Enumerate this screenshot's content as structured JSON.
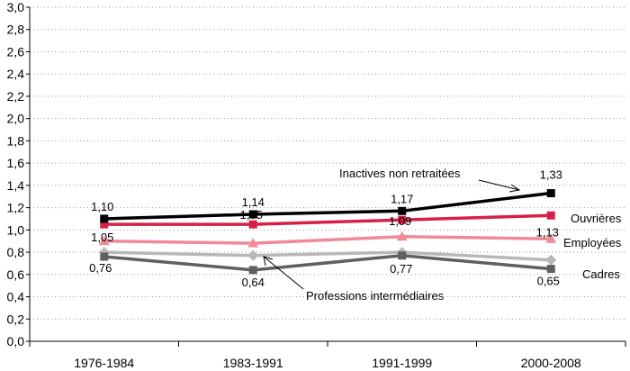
{
  "chart_data": {
    "type": "line",
    "categories": [
      "1976-1984",
      "1983-1991",
      "1991-1999",
      "2000-2008"
    ],
    "ylim": [
      0,
      3.0
    ],
    "yticks": [
      "0,0",
      "0,2",
      "0,4",
      "0,6",
      "0,8",
      "1,0",
      "1,2",
      "1,4",
      "1,6",
      "1,8",
      "2,0",
      "2,2",
      "2,4",
      "2,6",
      "2,8",
      "3,0"
    ],
    "grid": true,
    "series": [
      {
        "name": "Inactives non retraitées",
        "color": "#000000",
        "marker": "square",
        "values": [
          1.1,
          1.14,
          1.17,
          1.33
        ],
        "labels": [
          "1,10",
          "1,14",
          "1,17",
          "1,33"
        ]
      },
      {
        "name": "Ouvrières",
        "color": "#d81f45",
        "marker": "square",
        "values": [
          1.05,
          1.05,
          1.09,
          1.13
        ],
        "labels": [
          "1,05",
          "1,05",
          "1,09",
          "1,13"
        ]
      },
      {
        "name": "Employées",
        "color": "#f08a98",
        "marker": "triangle",
        "values": [
          0.9,
          0.88,
          0.94,
          0.92
        ],
        "labels": [
          "",
          "",
          "",
          ""
        ]
      },
      {
        "name": "Professions intermédiaires",
        "color": "#b8b8b8",
        "marker": "diamond",
        "values": [
          0.8,
          0.77,
          0.8,
          0.73
        ],
        "labels": [
          "",
          "",
          "",
          ""
        ]
      },
      {
        "name": "Cadres",
        "color": "#606060",
        "marker": "square",
        "values": [
          0.76,
          0.64,
          0.77,
          0.65
        ],
        "labels": [
          "0,76",
          "0,64",
          "0,77",
          "0,65"
        ]
      }
    ]
  }
}
